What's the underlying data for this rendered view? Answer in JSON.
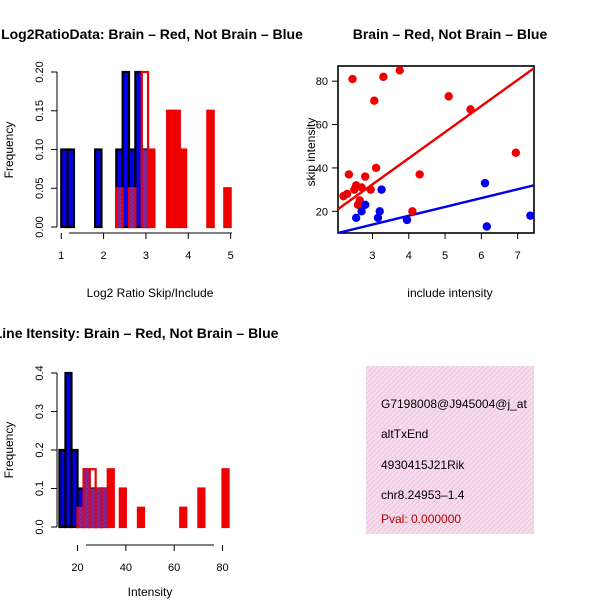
{
  "chart_data": [
    {
      "id": "hist-ratio",
      "type": "histogram",
      "title": "Log2RatioData: Brain – Red, Not Brain – Blue",
      "xlabel": "Log2 Ratio Skip/Include",
      "ylabel": "Frequency",
      "xlim": [
        0.9,
        5.15
      ],
      "ylim": [
        0,
        0.2
      ],
      "xticks": [
        "1",
        "2",
        "3",
        "4",
        "5"
      ],
      "xtick_values": [
        1,
        2,
        3,
        4,
        5
      ],
      "yticks": [
        "0.00",
        "0.05",
        "0.10",
        "0.15",
        "0.20"
      ],
      "ytick_values": [
        0,
        0.05,
        0.1,
        0.15,
        0.2
      ],
      "series": [
        {
          "name": "Not Brain",
          "color": "#0000ee",
          "bins": [
            [
              1.0,
              1.15,
              0.1
            ],
            [
              1.15,
              1.3,
              0.1
            ],
            [
              1.8,
              1.95,
              0.1
            ],
            [
              2.3,
              2.45,
              0.1
            ],
            [
              2.45,
              2.6,
              0.2
            ],
            [
              2.6,
              2.75,
              0.1
            ],
            [
              2.75,
              2.9,
              0.2
            ],
            [
              2.9,
              3.05,
              0.1
            ]
          ]
        },
        {
          "name": "Brain",
          "color": "#ee0000",
          "bins": [
            [
              2.3,
              2.45,
              0.05
            ],
            [
              2.6,
              2.75,
              0.05
            ],
            [
              2.9,
              3.05,
              0.2
            ],
            [
              3.05,
              3.2,
              0.1
            ],
            [
              3.5,
              3.65,
              0.15
            ],
            [
              3.65,
              3.8,
              0.15
            ],
            [
              3.8,
              3.95,
              0.1
            ],
            [
              4.45,
              4.6,
              0.15
            ],
            [
              4.85,
              5.0,
              0.05
            ]
          ]
        }
      ]
    },
    {
      "id": "scatter-intensity",
      "type": "scatter",
      "title": "Brain – Red, Not Brain – Blue",
      "xlabel": "include intensity",
      "ylabel": "skip intensity",
      "xlim": [
        2.05,
        7.45
      ],
      "ylim": [
        10,
        87
      ],
      "xticks": [
        "3",
        "4",
        "5",
        "6",
        "7"
      ],
      "xtick_values": [
        3,
        4,
        5,
        6,
        7
      ],
      "yticks": [
        "20",
        "40",
        "60",
        "80"
      ],
      "ytick_values": [
        20,
        40,
        60,
        80
      ],
      "series": [
        {
          "name": "Brain",
          "color": "#ee0000",
          "points": [
            [
              2.2,
              27
            ],
            [
              2.3,
              28
            ],
            [
              2.35,
              37
            ],
            [
              2.45,
              81
            ],
            [
              2.5,
              30
            ],
            [
              2.55,
              32
            ],
            [
              2.6,
              23
            ],
            [
              2.65,
              25
            ],
            [
              2.7,
              31
            ],
            [
              2.8,
              36
            ],
            [
              2.95,
              30
            ],
            [
              3.05,
              71
            ],
            [
              3.1,
              40
            ],
            [
              3.3,
              82
            ],
            [
              3.75,
              85
            ],
            [
              4.1,
              20
            ],
            [
              4.3,
              37
            ],
            [
              5.1,
              73
            ],
            [
              5.7,
              67
            ],
            [
              6.95,
              47
            ]
          ],
          "fit": [
            [
              2.05,
              21
            ],
            [
              7.45,
              86
            ]
          ]
        },
        {
          "name": "Not Brain",
          "color": "#0000ee",
          "points": [
            [
              2.55,
              17
            ],
            [
              2.7,
              20
            ],
            [
              2.8,
              23
            ],
            [
              3.15,
              17
            ],
            [
              3.2,
              20
            ],
            [
              3.25,
              30
            ],
            [
              3.95,
              16
            ],
            [
              6.1,
              33
            ],
            [
              6.15,
              13
            ],
            [
              7.35,
              18
            ]
          ],
          "fit": [
            [
              2.05,
              10
            ],
            [
              7.45,
              32
            ]
          ]
        }
      ]
    },
    {
      "id": "hist-intensity",
      "type": "histogram",
      "title": "Exon Line Itensity: Brain – Red, Not Brain – Blue",
      "xlabel": "Intensity",
      "ylabel": "Frequency",
      "xlim": [
        11.5,
        86
      ],
      "ylim": [
        0,
        0.4
      ],
      "xticks": [
        "20",
        "40",
        "60",
        "80"
      ],
      "xtick_values": [
        20,
        40,
        60,
        80
      ],
      "yticks": [
        "0.0",
        "0.1",
        "0.2",
        "0.3",
        "0.4"
      ],
      "ytick_values": [
        0,
        0.1,
        0.2,
        0.3,
        0.4
      ],
      "series": [
        {
          "name": "Not Brain",
          "color": "#0000ee",
          "bins": [
            [
              12.5,
              15,
              0.2
            ],
            [
              15,
              17.5,
              0.4
            ],
            [
              17.5,
              20,
              0.2
            ],
            [
              20,
              22.5,
              0.1
            ],
            [
              22.5,
              25,
              0.15
            ],
            [
              25,
              27.5,
              0.1
            ],
            [
              27.5,
              30,
              0.1
            ],
            [
              30,
              32.5,
              0.1
            ]
          ]
        },
        {
          "name": "Brain",
          "color": "#ee0000",
          "bins": [
            [
              20,
              22.5,
              0.05
            ],
            [
              22.5,
              25,
              0.15
            ],
            [
              25,
              27.5,
              0.15
            ],
            [
              27.5,
              30,
              0.1
            ],
            [
              30,
              32.5,
              0.1
            ],
            [
              32.5,
              35,
              0.15
            ],
            [
              37.5,
              40,
              0.1
            ],
            [
              45,
              47.5,
              0.05
            ],
            [
              62.5,
              65,
              0.05
            ],
            [
              70,
              72.5,
              0.1
            ],
            [
              80,
              82.5,
              0.15
            ]
          ]
        }
      ]
    }
  ],
  "info_panel": {
    "lines": [
      "G7198008@J945004@j_at",
      "altTxEnd",
      "4930415J21Rik",
      "chr8.24953–1.4"
    ],
    "pval": "Pval: 0.000000",
    "background": "#f6dcef",
    "pval_color": "#b00000"
  }
}
